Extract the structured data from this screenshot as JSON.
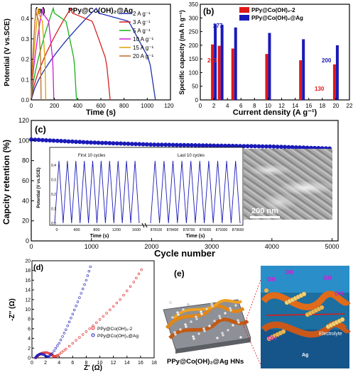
{
  "panel_a": {
    "tag": "(a)",
    "title": "PPy@Co(OH)₂@Ag",
    "ylabel": "Potential (V vs.SCE)",
    "xlabel": "Time (s)",
    "xticks": [
      "0",
      "200",
      "400",
      "600",
      "800",
      "1000",
      "1200"
    ],
    "yticks": [
      "0.0",
      "0.1",
      "0.2",
      "0.3",
      "0.4"
    ],
    "legend": [
      "2 A g⁻¹",
      "3 A g⁻¹",
      "5 A g⁻¹",
      "10 A g⁻¹",
      "15 A g⁻¹",
      "20 A g⁻¹"
    ],
    "colors": [
      "#1f2fb0",
      "#d42020",
      "#17b017",
      "#d418d4",
      "#e0a000",
      "#c06a2a"
    ]
  },
  "panel_b": {
    "tag": "(b)",
    "ylabel": "Specific capacity (mA h g⁻¹)",
    "xlabel": "Current density (A g⁻¹)",
    "xticks": [
      "0",
      "2",
      "4",
      "6",
      "8",
      "10",
      "12",
      "14",
      "16",
      "18",
      "20",
      "22"
    ],
    "yticks": [
      "0",
      "50",
      "100",
      "150",
      "200",
      "250",
      "300",
      "350"
    ],
    "legend": [
      "PPy@Co(OH)₂-2",
      "PPy@Co(OH)₂@Ag"
    ],
    "annot_203": "203",
    "annot_277": "277",
    "annot_130": "130",
    "annot_200": "200",
    "colors": {
      "red": "#e01818",
      "blue": "#1a1ab8"
    }
  },
  "panel_c": {
    "tag": "(c)",
    "ylabel": "Capcity retention (%)",
    "xlabel": "Cycle number",
    "xticks": [
      "0",
      "1000",
      "2000",
      "3000",
      "4000",
      "5000"
    ],
    "yticks": [
      "0",
      "20",
      "40",
      "60",
      "80",
      "100",
      "120"
    ],
    "inset_ylabel": "Potential (V vs.SCE)",
    "inset_xlabel_left": "Time (s)",
    "inset_xlabel_right": "Time (s)",
    "inset_title_left": "First 10 cycles",
    "inset_title_right": "Last 10 cycles",
    "inset_yticks": [
      "0.0",
      "0.1",
      "0.2",
      "0.3",
      "0.4"
    ],
    "inset_xticks_left": [
      "0",
      "400",
      "800",
      "1200",
      "1600"
    ],
    "inset_xticks_right": [
      "878100",
      "878400",
      "878700",
      "879000",
      "879300",
      "879600"
    ],
    "sem_scale": "200 nm"
  },
  "panel_d": {
    "tag": "(d)",
    "ylabel": "-Z'' (Ω)",
    "xlabel": "Z' (Ω)",
    "xticks": [
      "0",
      "2",
      "4",
      "6",
      "8",
      "10",
      "12",
      "14",
      "16",
      "18"
    ],
    "yticks": [
      "0",
      "2",
      "4",
      "6",
      "8",
      "10",
      "12",
      "14",
      "16",
      "18",
      "20"
    ],
    "legend": [
      "PPy@Co(OH)₂-2",
      "PPy@Co(OH)₂@Ag"
    ]
  },
  "panel_e": {
    "tag": "(e)",
    "caption": "PPy@Co(OH)₂@Ag HNs",
    "labels": [
      "OH",
      "OH",
      "OH",
      "OH",
      "OH",
      "Electrolyte",
      "Ag"
    ]
  },
  "chart_data": [
    {
      "type": "line",
      "panel": "a",
      "xlabel": "Time (s)",
      "ylabel": "Potential (V vs.SCE)",
      "xlim": [
        0,
        1200
      ],
      "ylim": [
        0,
        0.47
      ],
      "series": [
        {
          "name": "2 A g⁻¹",
          "charge_end": 560,
          "discharge_end": 1070
        },
        {
          "name": "3 A g⁻¹",
          "charge_end": 340,
          "discharge_end": 680
        },
        {
          "name": "5 A g⁻¹",
          "charge_end": 190,
          "discharge_end": 390
        },
        {
          "name": "10 A g⁻¹",
          "charge_end": 95,
          "discharge_end": 195
        },
        {
          "name": "15 A g⁻¹",
          "charge_end": 60,
          "discharge_end": 125
        },
        {
          "name": "20 A g⁻¹",
          "charge_end": 40,
          "discharge_end": 85
        }
      ]
    },
    {
      "type": "bar",
      "panel": "b",
      "xlabel": "Current density (A g⁻¹)",
      "ylabel": "Specific capacity (mA h g⁻¹)",
      "x": [
        2,
        3,
        5,
        10,
        15,
        20
      ],
      "ylim": [
        0,
        350
      ],
      "series": [
        {
          "name": "PPy@Co(OH)₂-2",
          "values": [
            203,
            198,
            188,
            168,
            145,
            130
          ]
        },
        {
          "name": "PPy@Co(OH)₂@Ag",
          "values": [
            277,
            275,
            265,
            245,
            222,
            200
          ]
        }
      ]
    },
    {
      "type": "scatter",
      "panel": "c",
      "xlabel": "Cycle number",
      "ylabel": "Capcity retention (%)",
      "xlim": [
        0,
        5100
      ],
      "ylim": [
        0,
        120
      ],
      "x": [
        0,
        1000,
        2000,
        3000,
        4000,
        5000
      ],
      "values": [
        101,
        98,
        96,
        95,
        94,
        92
      ]
    },
    {
      "type": "scatter",
      "panel": "d",
      "xlabel": "Z' (Ω)",
      "ylabel": "-Z'' (Ω)",
      "xlim": [
        0,
        18
      ],
      "ylim": [
        0,
        20
      ],
      "series": [
        {
          "name": "PPy@Co(OH)₂-2",
          "x": [
            0.6,
            1.0,
            1.5,
            2.2,
            2.9,
            3.3,
            3.8,
            5,
            7,
            9,
            11,
            13,
            15,
            16.5
          ],
          "y": [
            0,
            0.6,
            1.0,
            1.1,
            0.7,
            0.2,
            0.5,
            1.8,
            4.2,
            6.6,
            9.2,
            12,
            15.6,
            19
          ]
        },
        {
          "name": "PPy@Co(OH)₂@Ag",
          "x": [
            0.5,
            0.8,
            1.2,
            1.7,
            2.1,
            2.4,
            3,
            4,
            5,
            6,
            7,
            8,
            8.8
          ],
          "y": [
            0,
            0.5,
            0.8,
            0.7,
            0.3,
            0.2,
            0.9,
            3.0,
            5.8,
            9.0,
            12.4,
            16,
            19.7
          ]
        }
      ]
    }
  ]
}
